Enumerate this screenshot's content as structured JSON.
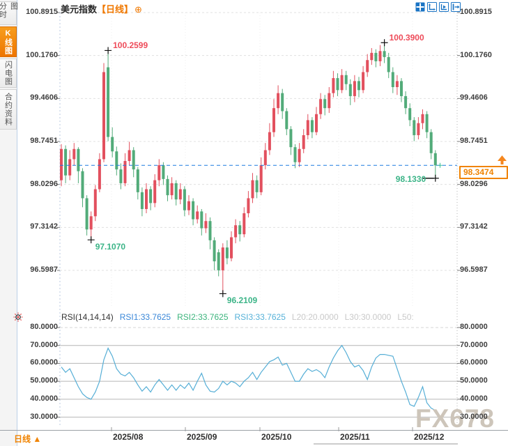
{
  "app": {
    "watermark": "FX678"
  },
  "header": {
    "title": "美元指数",
    "period": "【日线】",
    "add_icon": "⊕"
  },
  "toolbar": {
    "icons": [
      "pan-icon",
      "zoom-axis-x-icon",
      "zoom-axis-y-icon",
      "exit-icon"
    ]
  },
  "sidebar": {
    "tabs": [
      {
        "label": "分时图",
        "active": false
      },
      {
        "label": "K线图",
        "active": true
      },
      {
        "label": "闪电图",
        "active": false
      },
      {
        "label": "合约资料",
        "active": false
      }
    ]
  },
  "current_price": {
    "display": "98.3474"
  },
  "bottom_bar": {
    "period": "日线 ▲"
  },
  "rsi": {
    "header": {
      "name": "RSI(14,14,14)",
      "rsi1": "RSI1:33.7625",
      "rsi2": "RSI2:33.7625",
      "rsi3": "RSI3:33.7625",
      "l20": "L20:20.0000",
      "l30": "L30:30.0000",
      "l50": "L50:"
    }
  },
  "colors": {
    "up": "#e2505e",
    "down": "#52ab79",
    "accent_orange": "#f08300",
    "annotation_red": "#ee4b59",
    "annotation_green": "#3bb487",
    "dashed_line_blue": "#1d7be0",
    "rsi_line": "#55aed6",
    "icon_blue": "#1b74c4"
  },
  "chart_data": {
    "type": "candlestick",
    "title": "美元指数 日线",
    "price_axis_ticks": [
      100.8915,
      100.176,
      99.4606,
      98.7451,
      98.0296,
      97.3142,
      96.5987
    ],
    "x_tick_labels": [
      "2025/08",
      "2025/09",
      "2025/10",
      "2025/11",
      "2025/12"
    ],
    "current_price": 98.3474,
    "up_color": "#e2505e",
    "down_color": "#52ab79",
    "candles": [
      [
        98.1,
        98.7,
        98.0,
        98.62
      ],
      [
        98.62,
        98.68,
        98.05,
        98.18
      ],
      [
        98.18,
        98.6,
        98.1,
        98.45
      ],
      [
        98.45,
        98.72,
        98.35,
        98.62
      ],
      [
        98.62,
        98.65,
        98.05,
        98.25
      ],
      [
        98.25,
        98.3,
        97.65,
        97.8
      ],
      [
        97.8,
        97.85,
        97.18,
        97.28
      ],
      [
        97.28,
        97.58,
        97.107,
        97.5
      ],
      [
        97.5,
        98.02,
        97.42,
        97.95
      ],
      [
        97.95,
        98.55,
        97.9,
        98.45
      ],
      [
        98.45,
        100.05,
        98.4,
        99.9
      ],
      [
        99.98,
        100.2599,
        98.75,
        98.82
      ],
      [
        98.82,
        98.98,
        98.48,
        98.58
      ],
      [
        98.58,
        98.66,
        98.18,
        98.28
      ],
      [
        98.28,
        98.38,
        97.95,
        98.05
      ],
      [
        98.05,
        98.55,
        98.0,
        98.42
      ],
      [
        98.42,
        98.74,
        98.35,
        98.6
      ],
      [
        98.6,
        98.65,
        98.15,
        98.28
      ],
      [
        98.28,
        98.32,
        97.78,
        97.9
      ],
      [
        97.9,
        97.98,
        97.5,
        97.62
      ],
      [
        97.62,
        98.05,
        97.55,
        97.95
      ],
      [
        97.95,
        98.0,
        97.6,
        97.72
      ],
      [
        97.72,
        98.2,
        97.65,
        98.1
      ],
      [
        98.1,
        98.45,
        98.0,
        98.35
      ],
      [
        98.35,
        98.4,
        98.02,
        98.12
      ],
      [
        98.12,
        98.18,
        97.75,
        97.85
      ],
      [
        97.85,
        98.15,
        97.78,
        98.05
      ],
      [
        98.05,
        98.1,
        97.68,
        97.78
      ],
      [
        97.78,
        98.05,
        97.7,
        97.95
      ],
      [
        97.95,
        98.0,
        97.5,
        97.6
      ],
      [
        97.6,
        97.85,
        97.52,
        97.75
      ],
      [
        97.75,
        97.8,
        97.35,
        97.45
      ],
      [
        97.45,
        97.68,
        97.38,
        97.58
      ],
      [
        97.58,
        97.62,
        97.18,
        97.3
      ],
      [
        97.3,
        97.55,
        97.22,
        97.42
      ],
      [
        97.42,
        97.48,
        96.95,
        97.1
      ],
      [
        97.1,
        97.15,
        96.6,
        96.75
      ],
      [
        96.9,
        96.95,
        96.5,
        96.6
      ],
      [
        96.6,
        97.05,
        96.2109,
        96.98
      ],
      [
        96.98,
        97.1,
        96.7,
        96.8
      ],
      [
        96.8,
        97.25,
        96.75,
        97.15
      ],
      [
        97.15,
        97.45,
        97.05,
        97.35
      ],
      [
        97.35,
        97.42,
        97.08,
        97.2
      ],
      [
        97.2,
        97.65,
        97.15,
        97.55
      ],
      [
        97.55,
        97.92,
        97.48,
        97.8
      ],
      [
        97.8,
        98.22,
        97.72,
        98.1
      ],
      [
        98.1,
        98.18,
        97.8,
        97.9
      ],
      [
        97.9,
        98.48,
        97.85,
        98.35
      ],
      [
        98.35,
        98.72,
        98.28,
        98.6
      ],
      [
        98.6,
        99.05,
        98.52,
        98.9
      ],
      [
        98.9,
        99.45,
        98.82,
        99.3
      ],
      [
        99.3,
        99.68,
        99.2,
        99.55
      ],
      [
        99.55,
        99.62,
        99.12,
        99.25
      ],
      [
        99.25,
        99.3,
        98.85,
        98.95
      ],
      [
        98.95,
        99.0,
        98.52,
        98.65
      ],
      [
        98.65,
        98.7,
        98.3,
        98.4
      ],
      [
        98.4,
        98.72,
        98.32,
        98.62
      ],
      [
        98.62,
        98.95,
        98.55,
        98.85
      ],
      [
        98.85,
        99.2,
        98.78,
        99.1
      ],
      [
        99.1,
        99.15,
        98.8,
        98.9
      ],
      [
        98.9,
        99.32,
        98.85,
        99.2
      ],
      [
        99.2,
        99.55,
        99.12,
        99.45
      ],
      [
        99.45,
        99.52,
        99.18,
        99.3
      ],
      [
        99.3,
        99.65,
        99.22,
        99.55
      ],
      [
        99.55,
        99.92,
        99.48,
        99.8
      ],
      [
        99.8,
        99.88,
        99.5,
        99.6
      ],
      [
        99.6,
        99.95,
        99.55,
        99.85
      ],
      [
        99.85,
        99.92,
        99.6,
        99.7
      ],
      [
        99.7,
        99.78,
        99.35,
        99.5
      ],
      [
        99.5,
        99.85,
        99.4,
        99.75
      ],
      [
        99.75,
        99.82,
        99.48,
        99.6
      ],
      [
        99.6,
        100.0,
        99.55,
        99.9
      ],
      [
        99.9,
        100.2,
        99.82,
        100.1
      ],
      [
        100.1,
        100.3,
        100.02,
        100.22
      ],
      [
        100.22,
        100.28,
        99.98,
        100.08
      ],
      [
        100.08,
        100.35,
        100.0,
        100.25
      ],
      [
        100.25,
        100.39,
        100.05,
        100.15
      ],
      [
        100.15,
        100.22,
        99.8,
        99.9
      ],
      [
        99.9,
        99.98,
        99.55,
        99.65
      ],
      [
        99.65,
        99.85,
        99.52,
        99.75
      ],
      [
        99.75,
        99.8,
        99.4,
        99.5
      ],
      [
        99.5,
        99.58,
        99.2,
        99.3
      ],
      [
        99.3,
        99.38,
        99.0,
        99.1
      ],
      [
        99.1,
        99.15,
        98.75,
        98.85
      ],
      [
        98.85,
        99.15,
        98.78,
        99.05
      ],
      [
        99.05,
        99.28,
        98.95,
        99.2
      ],
      [
        99.2,
        99.25,
        98.8,
        98.9
      ],
      [
        98.9,
        98.95,
        98.45,
        98.55
      ],
      [
        98.55,
        98.6,
        98.133,
        98.3474
      ]
    ],
    "annotations": [
      {
        "text": "100.2599",
        "tone": "red",
        "index": 11,
        "pos": "high"
      },
      {
        "text": "100.3900",
        "tone": "red",
        "index": 76,
        "pos": "high"
      },
      {
        "text": "97.1070",
        "tone": "green",
        "index": 7,
        "pos": "low"
      },
      {
        "text": "96.2109",
        "tone": "green",
        "index": 38,
        "pos": "low"
      },
      {
        "text": "98.1330",
        "tone": "green",
        "index": 88,
        "pos": "low_left"
      }
    ],
    "rsi_panel": {
      "type": "line",
      "label": "RSI(14,14,14)",
      "y_ticks": [
        80,
        70,
        60,
        50,
        40,
        30
      ],
      "line_color": "#55aed6",
      "values": [
        58,
        55,
        57,
        52,
        47,
        43,
        41,
        40,
        44,
        50,
        62,
        68.5,
        64,
        57,
        54,
        53,
        55,
        52,
        48,
        44.5,
        47,
        44,
        48,
        51,
        48,
        45,
        48,
        45,
        48,
        46,
        49,
        45,
        50,
        54.5,
        48,
        44.5,
        44,
        46,
        50,
        48,
        50,
        49,
        47,
        50,
        52,
        55,
        51,
        55,
        58,
        61,
        62,
        63.5,
        59,
        60,
        55,
        50,
        50,
        54,
        57,
        55.5,
        56.5,
        55,
        52,
        58,
        63,
        67,
        70,
        66,
        61,
        58,
        59,
        56,
        51,
        58,
        63,
        65,
        65,
        64.5,
        64,
        57,
        50,
        44,
        37,
        36,
        41,
        47,
        38,
        35,
        33.76
      ]
    }
  }
}
